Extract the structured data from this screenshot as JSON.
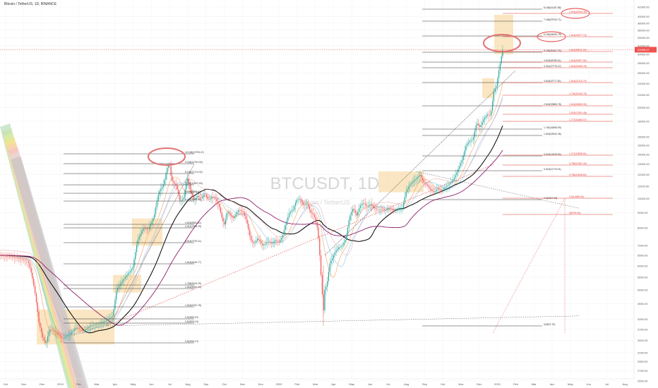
{
  "ticker": "Bitcoin / TetherUS, 1D, BINANCE",
  "watermark": {
    "symbol": "BTCUSDT, 1D",
    "sub": "Bitcoin / TetherUS"
  },
  "colors": {
    "candle_up": "#26a69a",
    "candle_down": "#ef5350",
    "ma_black": "#000000",
    "ma_purple": "#8e1f6b",
    "ma_red": "#e8a0a0",
    "zone": "#f7c77a",
    "circle": "#e57373",
    "fib_red": "#e53935",
    "fib_black": "#333333"
  },
  "chart_data": {
    "type": "candlestick",
    "instrument": "BTCUSDT",
    "timeframe": "1D",
    "x_labels": [
      "Oct",
      "Nov",
      "Dec",
      "2019",
      "Feb",
      "Mar",
      "Apr",
      "May",
      "Jun",
      "Jul",
      "Aug",
      "Sep",
      "Oct",
      "Nov",
      "Dec",
      "2020",
      "Feb",
      "Mar",
      "Apr",
      "May",
      "Jun",
      "Jul",
      "Aug",
      "Sep",
      "Oct",
      "Nov",
      "Dec",
      "2021",
      "Feb",
      "Mar",
      "Apr",
      "May",
      "Jun",
      "Jul",
      "Aug"
    ],
    "y_labels": [
      "42950.00",
      "40000.00",
      "38000.00",
      "36000.00",
      "34000.00",
      "32000.00",
      "30000.00",
      "28000.00",
      "26000.00",
      "24000.00",
      "22000.00",
      "20000.00",
      "18000.00",
      "16000.00",
      "15000.00",
      "14000.00",
      "13000.00",
      "12000.00",
      "11000.00",
      "10000.00",
      "9000.00",
      "8000.00",
      "7000.00",
      "6500.00",
      "6000.00",
      "5500.00",
      "5000.00",
      "4500.00",
      "4000.00",
      "3700.00",
      "3400.00",
      "3100.00",
      "2900.00",
      "2700.00",
      "2500.00"
    ],
    "last_price": "31055.07",
    "price_path": [
      [
        0,
        6500
      ],
      [
        8,
        6450
      ],
      [
        18,
        6400
      ],
      [
        30,
        6300
      ],
      [
        40,
        6200
      ],
      [
        45,
        5600
      ],
      [
        50,
        4800
      ],
      [
        55,
        3900
      ],
      [
        60,
        3500
      ],
      [
        65,
        3300
      ],
      [
        70,
        3700
      ],
      [
        78,
        3650
      ],
      [
        88,
        3450
      ],
      [
        98,
        3550
      ],
      [
        108,
        3750
      ],
      [
        118,
        3650
      ],
      [
        128,
        3800
      ],
      [
        140,
        3850
      ],
      [
        150,
        3950
      ],
      [
        160,
        4100
      ],
      [
        165,
        5000
      ],
      [
        172,
        5300
      ],
      [
        180,
        5600
      ],
      [
        188,
        5900
      ],
      [
        195,
        7300
      ],
      [
        203,
        8000
      ],
      [
        210,
        7900
      ],
      [
        218,
        8700
      ],
      [
        225,
        10500
      ],
      [
        232,
        11200
      ],
      [
        237,
        12700
      ],
      [
        240,
        13000
      ],
      [
        243,
        11500
      ],
      [
        250,
        11000
      ],
      [
        255,
        9800
      ],
      [
        260,
        10000
      ],
      [
        265,
        11800
      ],
      [
        270,
        10500
      ],
      [
        275,
        9900
      ],
      [
        280,
        10200
      ],
      [
        285,
        10000
      ],
      [
        290,
        10400
      ],
      [
        295,
        9900
      ],
      [
        300,
        10100
      ],
      [
        305,
        10000
      ],
      [
        310,
        9500
      ],
      [
        315,
        8500
      ],
      [
        318,
        8200
      ],
      [
        322,
        9100
      ],
      [
        330,
        8600
      ],
      [
        338,
        9200
      ],
      [
        345,
        9000
      ],
      [
        350,
        8300
      ],
      [
        355,
        7300
      ],
      [
        360,
        7100
      ],
      [
        365,
        7400
      ],
      [
        372,
        7000
      ],
      [
        380,
        7200
      ],
      [
        385,
        7100
      ],
      [
        390,
        7300
      ],
      [
        395,
        7200
      ],
      [
        400,
        7500
      ],
      [
        405,
        8300
      ],
      [
        410,
        9000
      ],
      [
        415,
        9200
      ],
      [
        420,
        9900
      ],
      [
        425,
        10000
      ],
      [
        430,
        9500
      ],
      [
        435,
        9600
      ],
      [
        440,
        9000
      ],
      [
        445,
        8800
      ],
      [
        450,
        7900
      ],
      [
        455,
        5400
      ],
      [
        458,
        4200
      ],
      [
        460,
        5000
      ],
      [
        463,
        5200
      ],
      [
        467,
        6100
      ],
      [
        470,
        6300
      ],
      [
        475,
        6700
      ],
      [
        480,
        6900
      ],
      [
        485,
        7000
      ],
      [
        490,
        7400
      ],
      [
        495,
        8700
      ],
      [
        500,
        9300
      ],
      [
        505,
        8800
      ],
      [
        510,
        9500
      ],
      [
        515,
        9700
      ],
      [
        520,
        9400
      ],
      [
        525,
        9600
      ],
      [
        530,
        9300
      ],
      [
        535,
        9200
      ],
      [
        540,
        9200
      ],
      [
        545,
        9100
      ],
      [
        550,
        9300
      ],
      [
        555,
        9200
      ],
      [
        560,
        9100
      ],
      [
        565,
        9300
      ],
      [
        570,
        9300
      ],
      [
        575,
        10500
      ],
      [
        580,
        11100
      ],
      [
        585,
        11400
      ],
      [
        590,
        11700
      ],
      [
        595,
        12000
      ],
      [
        600,
        11300
      ],
      [
        605,
        11100
      ],
      [
        610,
        10700
      ],
      [
        615,
        10500
      ],
      [
        620,
        10800
      ],
      [
        625,
        10600
      ],
      [
        630,
        10900
      ],
      [
        635,
        11100
      ],
      [
        640,
        11400
      ],
      [
        645,
        11900
      ],
      [
        650,
        12700
      ],
      [
        655,
        13500
      ],
      [
        660,
        15000
      ],
      [
        665,
        15500
      ],
      [
        670,
        15700
      ],
      [
        675,
        17800
      ],
      [
        680,
        17200
      ],
      [
        685,
        18300
      ],
      [
        690,
        19000
      ],
      [
        695,
        18800
      ],
      [
        700,
        23000
      ],
      [
        703,
        23500
      ],
      [
        706,
        26000
      ],
      [
        709,
        28500
      ],
      [
        712,
        31055
      ]
    ],
    "fib_levels_left": [
      "10.168(13795.47)",
      "9.168(12704.90)",
      "8.168(11714.32)",
      "7.168(10817.53)",
      "6.168(9973.43)",
      "5.168(9060.46)",
      "4.618(8381.81)",
      "4.414(7995.29)",
      "3.618(7375.41)",
      "2.618(6449.77)",
      "1.786(5315.29)",
      "1.618(5052.40)",
      "1.618(4781.78)",
      "0.5(3987.87)",
      "0.5(3876.41)",
      "0.5(3261.07)"
    ],
    "fib_levels_right_black": [
      "8.168(41187.58)",
      "7.168(37943.71)",
      "6.168(34999.79)",
      "5.168(30447.25)",
      "4.618(28780.61)",
      "4.414(27775.47)",
      "3.618(22777.81)",
      "2.618(19883.78)",
      "1.764(16655.99)",
      "1.618(15942.36)",
      "0.618(11828.09)",
      "0.618(11776.91)",
      "0.5(9817.05)",
      "0(3821.75)"
    ],
    "fib_levels_right_red": [
      "1.618(42090.35)",
      "1.618(31877.10)",
      "1.618(28911.59)",
      "1.618(25957.56)",
      "1.618(24085.25)",
      "1.618(22116.79)",
      "1.764(20248.75)",
      "1.618(18836.95)",
      "1.618(17841.48)",
      "1.272(16486.57)",
      "1.272(13598.81)",
      "0.786(12361.30)",
      "0.786(11848.50)",
      "0.5(10695.00)",
      "0(8790.16)"
    ]
  }
}
